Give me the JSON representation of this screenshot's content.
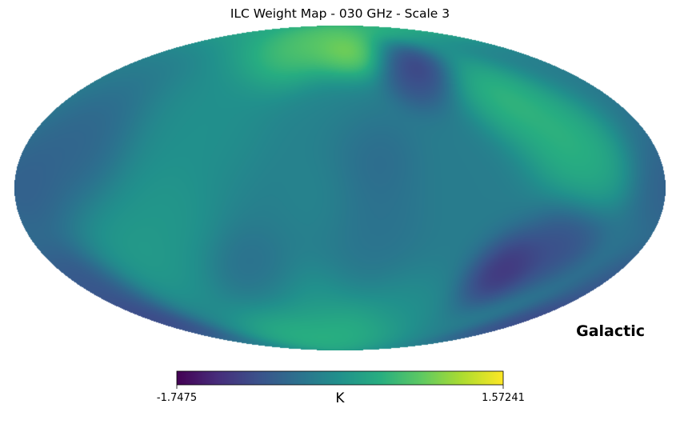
{
  "chart_data": {
    "type": "heatmap",
    "projection": "mollweide",
    "title": "ILC Weight Map - 030 GHz - Scale 3",
    "coord_label": "Galactic",
    "colormap": "viridis",
    "colorbar": {
      "min_label": "-1.7475",
      "max_label": "1.57241",
      "unit": "K",
      "range": [
        -1.7475,
        1.57241
      ]
    },
    "base_value": -0.35,
    "features": [
      {
        "lon": 22,
        "lat": 78,
        "value": 1.1,
        "width": 14
      },
      {
        "lon": -10,
        "lat": 66,
        "value": 1.55,
        "width": 9
      },
      {
        "lon": 45,
        "lat": 64,
        "value": 0.9,
        "width": 11
      },
      {
        "lon": -62,
        "lat": 62,
        "value": -1.55,
        "width": 8
      },
      {
        "lon": -52,
        "lat": 52,
        "value": -1.2,
        "width": 9
      },
      {
        "lon": -108,
        "lat": 42,
        "value": 0.75,
        "width": 12
      },
      {
        "lon": -130,
        "lat": 22,
        "value": 0.75,
        "width": 15
      },
      {
        "lon": -140,
        "lat": 8,
        "value": 0.4,
        "width": 12
      },
      {
        "lon": 80,
        "lat": 30,
        "value": 0.05,
        "width": 22
      },
      {
        "lon": 150,
        "lat": 20,
        "value": -0.8,
        "width": 16
      },
      {
        "lon": 175,
        "lat": 0,
        "value": -0.9,
        "width": 14
      },
      {
        "lon": 30,
        "lat": -60,
        "value": 0.25,
        "width": 14
      },
      {
        "lon": -15,
        "lat": -72,
        "value": 0.7,
        "width": 10
      },
      {
        "lon": 50,
        "lat": -74,
        "value": 0.7,
        "width": 10
      },
      {
        "lon": -50,
        "lat": -60,
        "value": 0.0,
        "width": 12
      },
      {
        "lon": -105,
        "lat": -38,
        "value": -1.65,
        "width": 10
      },
      {
        "lon": -130,
        "lat": -25,
        "value": -1.2,
        "width": 12
      },
      {
        "lon": 120,
        "lat": -30,
        "value": 0.25,
        "width": 16
      },
      {
        "lon": 95,
        "lat": -10,
        "value": 0.15,
        "width": 16
      },
      {
        "lon": 170,
        "lat": -45,
        "value": -1.1,
        "width": 12
      },
      {
        "lon": 175,
        "lat": -65,
        "value": -1.3,
        "width": 9
      },
      {
        "lon": -15,
        "lat": 15,
        "value": -0.75,
        "width": 14
      },
      {
        "lon": -20,
        "lat": -15,
        "value": -0.55,
        "width": 14
      },
      {
        "lon": 55,
        "lat": -40,
        "value": -0.65,
        "width": 12
      },
      {
        "lon": 0,
        "lat": 35,
        "value": -0.2,
        "width": 16
      },
      {
        "lon": 10,
        "lat": 0,
        "value": -0.2,
        "width": 14
      }
    ]
  }
}
